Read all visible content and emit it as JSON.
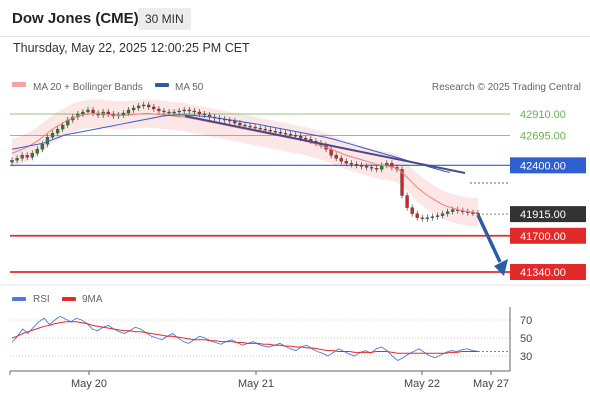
{
  "header": {
    "title": "Dow Jones (CME)",
    "timeframe": "30 MIN",
    "datetime": "Thursday, May 22, 2025 12:00:25 PM CET"
  },
  "legend": {
    "ma20_label": "MA 20 + Bollinger Bands",
    "ma50_label": "MA 50",
    "rsi_label": "RSI",
    "ma9_label": "9MA",
    "credit": "Research © 2025 Trading Central"
  },
  "colors": {
    "resistance": "#6ab04c",
    "pivot": "#2f5fd0",
    "support": "#e32a2a",
    "last_price_bg": "#333333",
    "ma20": "#f08080",
    "ma50": "#2f5fd0",
    "bollinger_fill": "#fde3e3",
    "arrow": "#2b5ca8",
    "rsi": "#4a7bdc",
    "rsi_ma": "#e32a2a"
  },
  "chart_data": [
    {
      "type": "line",
      "title": "Dow Jones (CME) 30 MIN",
      "x_labels": [
        "May 20",
        "May 21",
        "May 22",
        "May 27"
      ],
      "levels": [
        {
          "label": "42910.00",
          "value": 42910,
          "kind": "resistance"
        },
        {
          "label": "42695.00",
          "value": 42695,
          "kind": "resistance"
        },
        {
          "label": "42400.00",
          "value": 42400,
          "kind": "pivot"
        },
        {
          "label": "41915.00",
          "value": 41915,
          "kind": "last"
        },
        {
          "label": "41700.00",
          "value": 41700,
          "kind": "support"
        },
        {
          "label": "41340.00",
          "value": 41340,
          "kind": "support"
        }
      ],
      "price_close": [
        42450,
        42470,
        42500,
        42480,
        42520,
        42560,
        42610,
        42680,
        42720,
        42760,
        42800,
        42850,
        42880,
        42910,
        42930,
        42950,
        42920,
        42900,
        42930,
        42910,
        42890,
        42900,
        42920,
        42950,
        42970,
        42990,
        43000,
        42980,
        42960,
        42940,
        42930,
        42920,
        42930,
        42940,
        42950,
        42940,
        42930,
        42910,
        42900,
        42880,
        42870,
        42860,
        42850,
        42840,
        42820,
        42800,
        42790,
        42780,
        42770,
        42760,
        42750,
        42740,
        42730,
        42720,
        42710,
        42700,
        42690,
        42670,
        42660,
        42640,
        42620,
        42600,
        42560,
        42500,
        42470,
        42440,
        42420,
        42410,
        42400,
        42390,
        42380,
        42370,
        42360,
        42400,
        42420,
        42380,
        42360,
        42100,
        41980,
        41920,
        41880,
        41870,
        41880,
        41890,
        41900,
        41920,
        41940,
        41960,
        41950,
        41940,
        41930,
        41925,
        41915
      ],
      "ma20": [
        42520,
        42540,
        42560,
        42580,
        42610,
        42640,
        42680,
        42720,
        42760,
        42790,
        42820,
        42850,
        42870,
        42890,
        42900,
        42910,
        42915,
        42915,
        42910,
        42905,
        42900,
        42895,
        42895,
        42900,
        42905,
        42910,
        42915,
        42915,
        42910,
        42905,
        42900,
        42895,
        42890,
        42885,
        42880,
        42870,
        42860,
        42850,
        42840,
        42830,
        42820,
        42810,
        42800,
        42790,
        42780,
        42770,
        42760,
        42750,
        42740,
        42730,
        42720,
        42710,
        42700,
        42690,
        42680,
        42670,
        42660,
        42650,
        42640,
        42625,
        42610,
        42595,
        42580,
        42560,
        42540,
        42520,
        42500,
        42485,
        42470,
        42455,
        42440,
        42425,
        42410,
        42400,
        42395,
        42385,
        42370,
        42330,
        42280,
        42230,
        42180,
        42140,
        42100,
        42070,
        42040,
        42010,
        41990,
        41975,
        41960,
        41950,
        41940,
        41935,
        41930
      ],
      "ma50": [
        42560,
        42570,
        42580,
        42590,
        42600,
        42610,
        42620,
        42640,
        42660,
        42680,
        42700,
        42710,
        42720,
        42730,
        42740,
        42750,
        42760,
        42770,
        42780,
        42790,
        42800,
        42810,
        42820,
        42830,
        42840,
        42850,
        42860,
        42870,
        42880,
        42890,
        42895,
        42898,
        42900,
        42900,
        42898,
        42895,
        42890,
        42885,
        42880,
        42872,
        42865,
        42858,
        42850,
        42842,
        42834,
        42826,
        42818,
        42810,
        42800,
        42790,
        42780,
        42770,
        42760,
        42750,
        42740,
        42730,
        42720,
        42710,
        42700,
        42690,
        42680,
        42668,
        42655,
        42640,
        42625,
        42610,
        42595,
        42580,
        42565,
        42550,
        42535,
        42520,
        42505,
        42490,
        42475,
        42460,
        42445,
        42430,
        42415,
        42400,
        42385,
        42370,
        42355,
        42340,
        42330
      ],
      "rsi": {
        "levels": [
          70,
          50,
          30
        ],
        "values": [
          45,
          52,
          60,
          55,
          62,
          68,
          72,
          65,
          70,
          74,
          71,
          68,
          72,
          70,
          66,
          60,
          58,
          62,
          64,
          60,
          57,
          55,
          58,
          62,
          60,
          56,
          52,
          50,
          48,
          52,
          55,
          50,
          46,
          44,
          48,
          52,
          50,
          47,
          45,
          43,
          46,
          48,
          45,
          42,
          44,
          46,
          43,
          41,
          40,
          42,
          44,
          41,
          38,
          36,
          40,
          42,
          38,
          35,
          33,
          30,
          34,
          38,
          35,
          32,
          30,
          34,
          36,
          33,
          38,
          40,
          36,
          30,
          25,
          28,
          32,
          35,
          38,
          34,
          30,
          28,
          31,
          34,
          36,
          35,
          37,
          38,
          36,
          35
        ],
        "ma9": [
          50,
          52,
          55,
          57,
          59,
          61,
          63,
          64,
          66,
          67,
          68,
          68,
          68,
          67,
          66,
          64,
          63,
          62,
          61,
          60,
          59,
          58,
          58,
          57,
          57,
          56,
          55,
          54,
          53,
          52,
          52,
          51,
          50,
          49,
          48,
          48,
          48,
          47,
          47,
          46,
          46,
          46,
          45,
          45,
          44,
          44,
          44,
          43,
          43,
          42,
          42,
          41,
          41,
          40,
          40,
          39,
          39,
          38,
          37,
          36,
          36,
          35,
          35,
          35,
          34,
          34,
          34,
          34,
          35,
          35,
          35,
          34,
          33,
          33,
          33,
          33,
          33,
          33,
          33,
          33,
          33,
          33,
          34,
          34,
          35,
          35,
          35,
          35
        ]
      }
    }
  ]
}
